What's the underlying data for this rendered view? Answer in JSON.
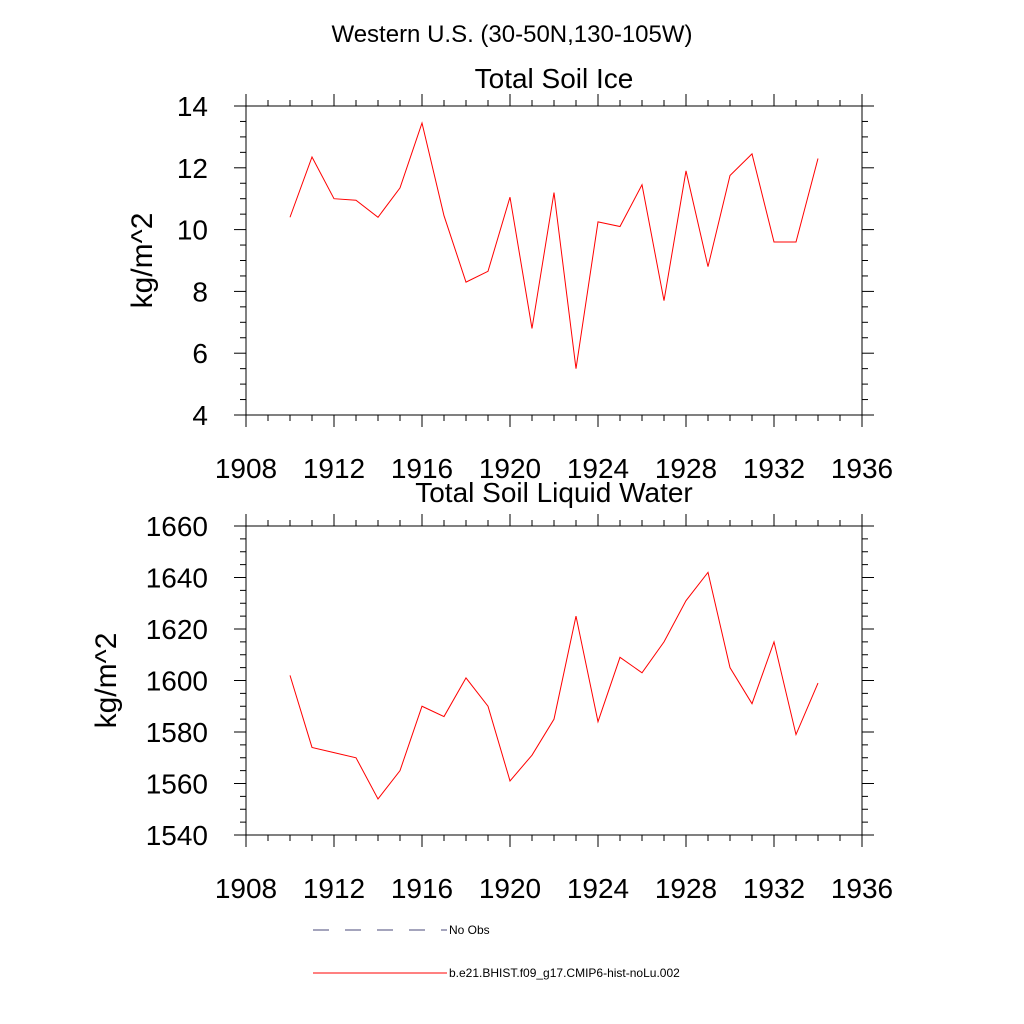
{
  "figure": {
    "title": "Western U.S. (30-50N,130-105W)"
  },
  "colors": {
    "series": "#ff0000",
    "obs": "#4a4a78",
    "axis": "#000000"
  },
  "legend": [
    {
      "label": "No Obs",
      "style": "dashed",
      "color": "#4a4a78"
    },
    {
      "label": "b.e21.BHIST.f09_g17.CMIP6-hist-noLu.002",
      "style": "solid",
      "color": "#ff0000"
    }
  ],
  "chart_data": [
    {
      "type": "line",
      "title": "Total Soil Ice",
      "xlabel": "",
      "ylabel": "kg/m^2",
      "xlim": [
        1908,
        1936
      ],
      "ylim": [
        4,
        14
      ],
      "xticks": [
        1908,
        1912,
        1916,
        1920,
        1924,
        1928,
        1932,
        1936
      ],
      "yticks": [
        4,
        6,
        8,
        10,
        12,
        14
      ],
      "grid": false,
      "series": [
        {
          "x": [
            1910,
            1911,
            1912,
            1913,
            1914,
            1915,
            1916,
            1917,
            1918,
            1919,
            1920,
            1921,
            1922,
            1923,
            1924,
            1925,
            1926,
            1927,
            1928,
            1929,
            1930,
            1931,
            1932,
            1933,
            1934
          ],
          "y": [
            10.4,
            12.35,
            11.0,
            10.95,
            10.4,
            11.35,
            13.45,
            10.45,
            8.3,
            8.65,
            11.05,
            6.8,
            11.2,
            5.5,
            10.25,
            10.1,
            11.45,
            7.7,
            11.9,
            8.8,
            11.75,
            12.45,
            9.6,
            9.6,
            12.3
          ]
        }
      ]
    },
    {
      "type": "line",
      "title": "Total Soil Liquid Water",
      "xlabel": "",
      "ylabel": "kg/m^2",
      "xlim": [
        1908,
        1936
      ],
      "ylim": [
        1540,
        1660
      ],
      "xticks": [
        1908,
        1912,
        1916,
        1920,
        1924,
        1928,
        1932,
        1936
      ],
      "yticks": [
        1540,
        1560,
        1580,
        1600,
        1620,
        1640,
        1660
      ],
      "grid": false,
      "series": [
        {
          "x": [
            1910,
            1911,
            1912,
            1913,
            1914,
            1915,
            1916,
            1917,
            1918,
            1919,
            1920,
            1921,
            1922,
            1923,
            1924,
            1925,
            1926,
            1927,
            1928,
            1929,
            1930,
            1931,
            1932,
            1933,
            1934
          ],
          "y": [
            1602,
            1574,
            1572,
            1570,
            1554,
            1565,
            1590,
            1586,
            1601,
            1590,
            1561,
            1571,
            1585,
            1625,
            1584,
            1609,
            1603,
            1615,
            1631,
            1642,
            1605,
            1591,
            1615,
            1579,
            1599
          ]
        }
      ]
    }
  ]
}
